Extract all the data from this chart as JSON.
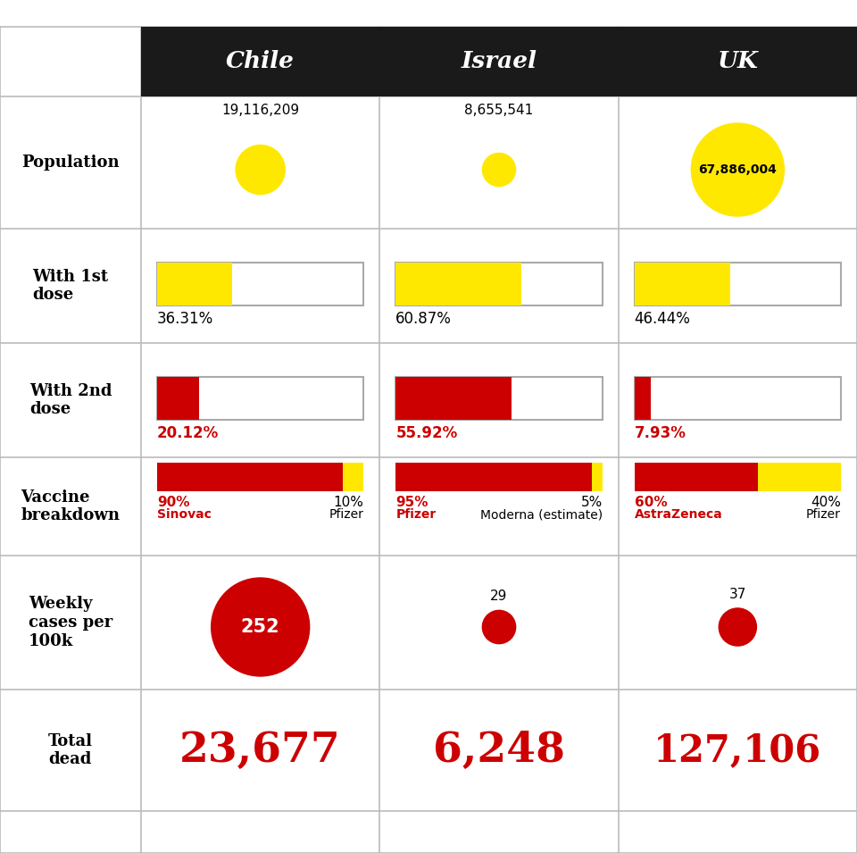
{
  "countries": [
    "Chile",
    "Israel",
    "UK"
  ],
  "population": [
    19116209,
    8655541,
    67886004
  ],
  "population_labels": [
    "19,116,209",
    "8,655,541",
    "67,886,004"
  ],
  "dose1_pct": [
    36.31,
    60.87,
    46.44
  ],
  "dose1_labels": [
    "36.31%",
    "60.87%",
    "46.44%"
  ],
  "dose2_pct": [
    20.12,
    55.92,
    7.93
  ],
  "dose2_labels": [
    "20.12%",
    "55.92%",
    "7.93%"
  ],
  "vaccine_main_pct": [
    90,
    95,
    60
  ],
  "vaccine_secondary_pct": [
    10,
    5,
    40
  ],
  "vaccine_main_label_pct": [
    "90%",
    "95%",
    "60%"
  ],
  "vaccine_secondary_label_pct": [
    "10%",
    "5%",
    "40%"
  ],
  "vaccine_main_name": [
    "Sinovac",
    "Pfizer",
    "AstraZeneca"
  ],
  "vaccine_secondary_name": [
    "Pfizer",
    "Moderna (estimate)",
    "Pfizer"
  ],
  "weekly_cases": [
    252,
    29,
    37
  ],
  "total_dead": [
    "23,677",
    "6,248",
    "127,106"
  ],
  "header_bg": "#1a1a1a",
  "header_text": "#ffffff",
  "yellow": "#FFE800",
  "red": "#cc0000",
  "bg": "#ffffff",
  "grid_color": "#bbbbbb",
  "row_labels": [
    "Population",
    "With 1st\ndose",
    "With 2nd\ndose",
    "Vaccine\nbreakdown",
    "Weekly\ncases per\n100k",
    "Total\ndead"
  ],
  "max_population": 67886004
}
